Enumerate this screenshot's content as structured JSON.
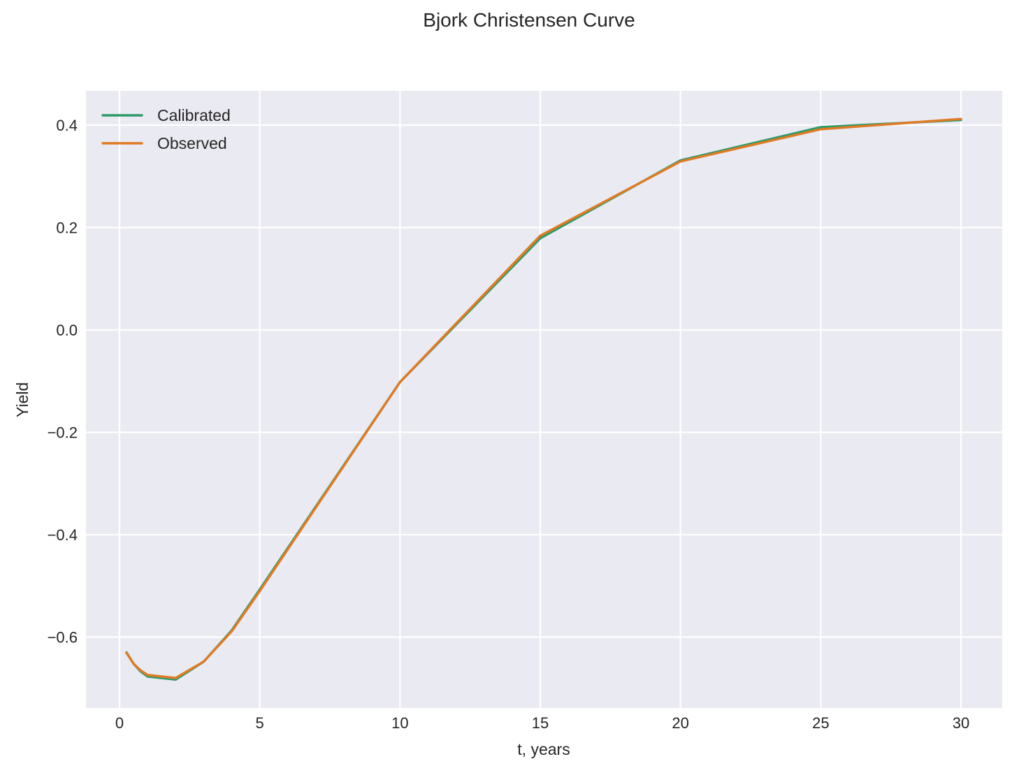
{
  "chart_data": {
    "type": "line",
    "title": "Bjork Christensen Curve",
    "xlabel": "t, years",
    "ylabel": "Yield",
    "xlim": [
      -1.2,
      31.5
    ],
    "ylim": [
      -0.74,
      0.467
    ],
    "xticks": [
      0,
      5,
      10,
      15,
      20,
      25,
      30
    ],
    "xtick_labels": [
      "0",
      "5",
      "10",
      "15",
      "20",
      "25",
      "30"
    ],
    "yticks": [
      0.4,
      0.2,
      0.0,
      -0.2,
      -0.4,
      -0.6
    ],
    "ytick_labels": [
      "0.4",
      "0.2",
      "0.0",
      "−0.2",
      "−0.4",
      "−0.6"
    ],
    "grid": true,
    "legend_position": "upper left",
    "x": [
      0.25,
      0.5,
      0.75,
      1,
      2,
      3,
      4,
      5,
      10,
      15,
      20,
      25,
      30
    ],
    "series": [
      {
        "name": "Calibrated",
        "color": "#2e9a68",
        "values": [
          -0.63,
          -0.652,
          -0.667,
          -0.677,
          -0.683,
          -0.648,
          -0.587,
          -0.507,
          -0.102,
          0.179,
          0.331,
          0.396,
          0.41
        ]
      },
      {
        "name": "Observed",
        "color": "#e07b25",
        "values": [
          -0.631,
          -0.652,
          -0.665,
          -0.674,
          -0.68,
          -0.648,
          -0.589,
          -0.51,
          -0.102,
          0.184,
          0.329,
          0.392,
          0.412
        ]
      }
    ]
  },
  "style": {
    "plot_bg": "#eaeaf2",
    "grid_color": "#ffffff"
  }
}
